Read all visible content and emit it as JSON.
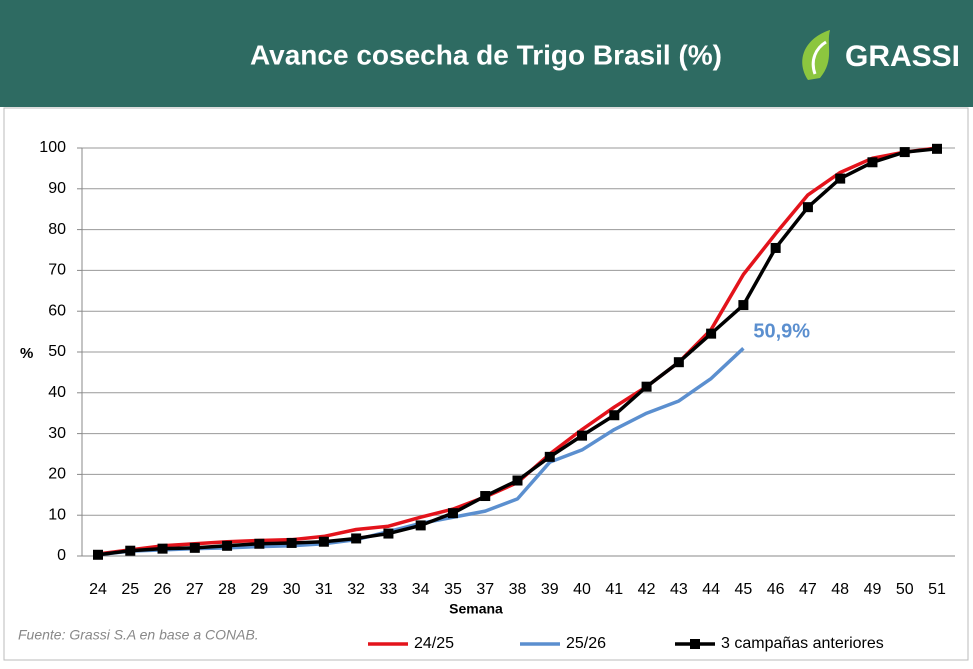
{
  "header": {
    "title": "Avance cosecha de Trigo Brasil (%)",
    "brand": "GRASSI"
  },
  "chart_data": {
    "type": "line",
    "categories": [
      "24",
      "25",
      "26",
      "27",
      "28",
      "29",
      "30",
      "31",
      "32",
      "33",
      "34",
      "35",
      "37",
      "38",
      "39",
      "40",
      "41",
      "42",
      "43",
      "44",
      "45",
      "46",
      "47",
      "48",
      "49",
      "50",
      "51"
    ],
    "series": [
      {
        "name": "24/25",
        "color": "#e3131b",
        "values": [
          0.5,
          1.5,
          2.5,
          3,
          3.5,
          3.8,
          4,
          4.8,
          6.5,
          7.3,
          9.5,
          11.5,
          14.5,
          18,
          25,
          31,
          36.5,
          41.5,
          47.5,
          55.5,
          69,
          79,
          88.5,
          94,
          97.5,
          99,
          100
        ]
      },
      {
        "name": "25/26",
        "color": "#5b8fcf",
        "values": [
          0.3,
          1.2,
          1.5,
          1.8,
          2,
          2.3,
          2.5,
          3,
          4,
          6,
          8,
          9.5,
          11,
          14,
          23,
          26,
          31,
          35,
          38,
          43.5,
          50.9,
          null,
          null,
          null,
          null,
          null,
          null
        ],
        "value_labels": [
          null,
          null,
          null,
          null,
          null,
          null,
          null,
          null,
          null,
          null,
          null,
          null,
          null,
          null,
          null,
          null,
          null,
          null,
          null,
          null,
          "50,9%",
          null,
          null,
          null,
          null,
          null,
          null
        ]
      },
      {
        "name": "3 campañas anteriores",
        "color": "#000000",
        "marker": "square",
        "values": [
          0.3,
          1.3,
          1.8,
          2,
          2.5,
          3,
          3.2,
          3.5,
          4.3,
          5.5,
          7.5,
          10.5,
          14.7,
          18.5,
          24.3,
          29.5,
          34.5,
          41.5,
          47.5,
          54.5,
          61.5,
          75.5,
          85.5,
          92.5,
          96.5,
          99,
          99.8
        ]
      }
    ],
    "ylim": [
      0,
      100
    ],
    "yticks": [
      0,
      10,
      20,
      30,
      40,
      50,
      60,
      70,
      80,
      90,
      100
    ],
    "grid": true,
    "ylabel": "%",
    "xlabel": "Semana",
    "legend": "bottom",
    "source": "Fuente: Grassi S.A en base a CONAB."
  }
}
